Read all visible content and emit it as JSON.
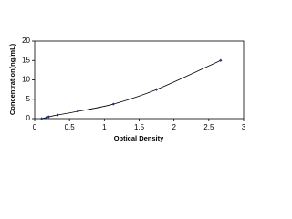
{
  "chart_data": {
    "type": "line",
    "x_label": "Optical Density",
    "y_label": "Concentration(ng/mL)",
    "x": [
      0.1,
      0.17,
      0.2,
      0.33,
      0.62,
      1.13,
      1.75,
      2.67
    ],
    "series": [
      {
        "color": "#000000",
        "marker_color": "#1f2f7a",
        "values": [
          0,
          0.3,
          0.47,
          0.94,
          1.88,
          3.75,
          7.5,
          15
        ]
      }
    ],
    "xlim": [
      0,
      3
    ],
    "xticks": [
      0,
      0.5,
      1,
      1.5,
      2,
      2.5,
      3
    ],
    "ylim": [
      0,
      20
    ],
    "yticks": [
      0,
      5,
      10,
      15,
      20
    ],
    "grid": false
  }
}
